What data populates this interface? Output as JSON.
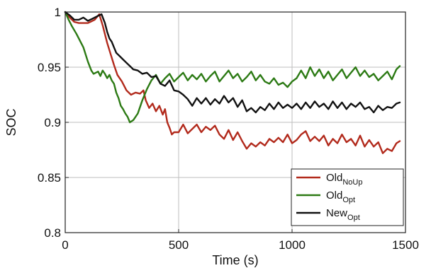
{
  "chart_data": {
    "type": "line",
    "xlabel": "Time (s)",
    "ylabel": "SOC",
    "xlim": [
      0,
      1500
    ],
    "ylim": [
      0.8,
      1.0
    ],
    "x_ticks": [
      "0",
      "500",
      "1000",
      "1500"
    ],
    "y_ticks": [
      "0.8",
      "0.85",
      "0.9",
      "0.95",
      "1"
    ],
    "grid": true,
    "legend_position": "bottom-right",
    "series": [
      {
        "name": "Old",
        "name_sub": "NoUp",
        "color": "#b22a1c",
        "x": [
          0,
          20,
          40,
          60,
          100,
          130,
          150,
          165,
          175,
          185,
          200,
          215,
          230,
          250,
          270,
          290,
          310,
          330,
          345,
          355,
          370,
          385,
          400,
          415,
          430,
          440,
          450,
          460,
          470,
          480,
          500,
          520,
          540,
          560,
          580,
          600,
          620,
          640,
          660,
          680,
          700,
          720,
          740,
          760,
          780,
          800,
          820,
          840,
          860,
          880,
          900,
          920,
          940,
          960,
          980,
          1000,
          1020,
          1040,
          1060,
          1080,
          1100,
          1120,
          1140,
          1160,
          1180,
          1200,
          1220,
          1240,
          1260,
          1280,
          1300,
          1320,
          1340,
          1360,
          1380,
          1400,
          1420,
          1440,
          1460,
          1475
        ],
        "values": [
          1.0,
          0.995,
          0.991,
          0.99,
          0.99,
          0.993,
          0.998,
          0.988,
          0.98,
          0.972,
          0.962,
          0.952,
          0.943,
          0.937,
          0.929,
          0.925,
          0.927,
          0.926,
          0.929,
          0.92,
          0.913,
          0.917,
          0.91,
          0.915,
          0.907,
          0.912,
          0.9,
          0.895,
          0.889,
          0.891,
          0.891,
          0.898,
          0.89,
          0.894,
          0.898,
          0.891,
          0.896,
          0.893,
          0.897,
          0.889,
          0.885,
          0.893,
          0.884,
          0.891,
          0.883,
          0.876,
          0.881,
          0.878,
          0.882,
          0.879,
          0.885,
          0.882,
          0.886,
          0.882,
          0.889,
          0.881,
          0.884,
          0.889,
          0.892,
          0.883,
          0.887,
          0.883,
          0.888,
          0.879,
          0.885,
          0.881,
          0.889,
          0.882,
          0.885,
          0.879,
          0.888,
          0.878,
          0.884,
          0.878,
          0.882,
          0.872,
          0.876,
          0.874,
          0.881,
          0.883
        ]
      },
      {
        "name": "Old",
        "name_sub": "Opt",
        "color": "#2c7a14",
        "x": [
          0,
          15,
          30,
          50,
          80,
          100,
          115,
          125,
          135,
          145,
          155,
          165,
          175,
          185,
          195,
          205,
          215,
          225,
          235,
          245,
          255,
          265,
          275,
          285,
          300,
          320,
          340,
          360,
          380,
          400,
          420,
          440,
          460,
          480,
          500,
          520,
          540,
          560,
          580,
          600,
          620,
          640,
          660,
          680,
          700,
          720,
          740,
          760,
          780,
          800,
          820,
          840,
          860,
          880,
          900,
          920,
          940,
          960,
          980,
          1000,
          1020,
          1040,
          1060,
          1080,
          1100,
          1120,
          1140,
          1160,
          1180,
          1200,
          1220,
          1240,
          1260,
          1280,
          1300,
          1320,
          1340,
          1360,
          1380,
          1400,
          1420,
          1440,
          1460,
          1475
        ],
        "values": [
          1.0,
          0.993,
          0.987,
          0.98,
          0.968,
          0.955,
          0.947,
          0.944,
          0.945,
          0.946,
          0.942,
          0.947,
          0.944,
          0.94,
          0.943,
          0.938,
          0.935,
          0.927,
          0.922,
          0.915,
          0.912,
          0.908,
          0.905,
          0.9,
          0.902,
          0.908,
          0.92,
          0.93,
          0.938,
          0.943,
          0.935,
          0.94,
          0.944,
          0.937,
          0.941,
          0.945,
          0.938,
          0.943,
          0.939,
          0.944,
          0.937,
          0.942,
          0.946,
          0.937,
          0.942,
          0.947,
          0.94,
          0.944,
          0.937,
          0.941,
          0.946,
          0.938,
          0.943,
          0.937,
          0.935,
          0.94,
          0.934,
          0.936,
          0.932,
          0.937,
          0.94,
          0.947,
          0.94,
          0.95,
          0.942,
          0.948,
          0.94,
          0.946,
          0.938,
          0.943,
          0.948,
          0.94,
          0.945,
          0.95,
          0.942,
          0.947,
          0.941,
          0.944,
          0.938,
          0.942,
          0.946,
          0.939,
          0.948,
          0.951
        ]
      },
      {
        "name": "New",
        "name_sub": "Opt",
        "color": "#111111",
        "x": [
          0,
          20,
          40,
          60,
          80,
          100,
          120,
          140,
          160,
          175,
          185,
          195,
          205,
          215,
          225,
          240,
          255,
          270,
          285,
          300,
          320,
          340,
          360,
          380,
          400,
          420,
          440,
          460,
          480,
          500,
          520,
          540,
          560,
          580,
          600,
          620,
          640,
          660,
          680,
          700,
          720,
          740,
          760,
          780,
          800,
          820,
          840,
          860,
          880,
          900,
          920,
          940,
          960,
          980,
          1000,
          1020,
          1040,
          1060,
          1080,
          1100,
          1120,
          1140,
          1160,
          1180,
          1200,
          1220,
          1240,
          1260,
          1280,
          1300,
          1320,
          1340,
          1360,
          1380,
          1400,
          1420,
          1440,
          1460,
          1475
        ],
        "values": [
          1.0,
          0.997,
          0.993,
          0.993,
          0.995,
          0.992,
          0.994,
          0.996,
          0.998,
          0.99,
          0.982,
          0.976,
          0.973,
          0.968,
          0.963,
          0.96,
          0.957,
          0.954,
          0.951,
          0.948,
          0.947,
          0.944,
          0.945,
          0.941,
          0.942,
          0.935,
          0.933,
          0.938,
          0.929,
          0.928,
          0.925,
          0.921,
          0.915,
          0.922,
          0.917,
          0.922,
          0.916,
          0.921,
          0.917,
          0.924,
          0.918,
          0.922,
          0.914,
          0.92,
          0.91,
          0.913,
          0.909,
          0.914,
          0.911,
          0.917,
          0.912,
          0.918,
          0.913,
          0.916,
          0.913,
          0.917,
          0.912,
          0.918,
          0.913,
          0.919,
          0.914,
          0.917,
          0.912,
          0.919,
          0.913,
          0.918,
          0.912,
          0.917,
          0.914,
          0.918,
          0.912,
          0.914,
          0.909,
          0.915,
          0.911,
          0.914,
          0.913,
          0.917,
          0.918
        ]
      }
    ]
  }
}
